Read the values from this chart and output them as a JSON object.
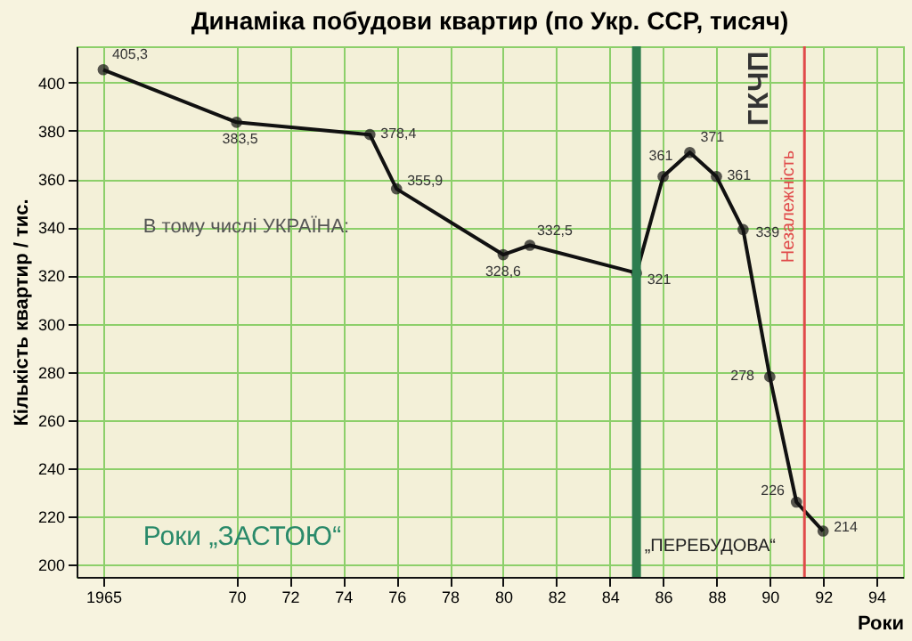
{
  "chart_data": {
    "type": "line",
    "title": "Динаміка побудови квартир (по Укр. ССР, тисяч)",
    "ylabel": "Кількість квартир / тис.",
    "xlabel": "Роки",
    "x": [
      1965,
      1970,
      1975,
      1976,
      1980,
      1981,
      1985,
      1986,
      1987,
      1988,
      1989,
      1990,
      1991,
      1992
    ],
    "series": [
      {
        "color": "#111111",
        "values": [
          405.3,
          383.5,
          378.4,
          355.9,
          328.6,
          332.5,
          321,
          361,
          371,
          361,
          339,
          278,
          226,
          214
        ],
        "value_labels": [
          "405,3",
          "383,5",
          "378,4",
          "355,9",
          "328,6",
          "332,5",
          "321",
          "361",
          "371",
          "361",
          "339",
          "278",
          "226",
          "214"
        ]
      }
    ],
    "xlim": [
      1964,
      1995
    ],
    "ylim": [
      195,
      415
    ],
    "xticks": [
      1965,
      {
        "value": 1970,
        "label": "70"
      },
      {
        "value": 1972,
        "label": "72"
      },
      {
        "value": 1974,
        "label": "74"
      },
      {
        "value": 1976,
        "label": "76"
      },
      {
        "value": 1978,
        "label": "78"
      },
      {
        "value": 1980,
        "label": "80"
      },
      {
        "value": 1982,
        "label": "82"
      },
      {
        "value": 1984,
        "label": "84"
      },
      {
        "value": 1986,
        "label": "86"
      },
      {
        "value": 1988,
        "label": "88"
      },
      {
        "value": 1990,
        "label": "90"
      },
      {
        "value": 1992,
        "label": "92"
      },
      {
        "value": 1994,
        "label": "94"
      }
    ],
    "yticks": [
      200,
      220,
      240,
      260,
      280,
      300,
      320,
      340,
      360,
      380,
      400
    ],
    "ref_lines": [
      {
        "axis": "x",
        "value": 1985,
        "color": "#2e7d4f"
      },
      {
        "axis": "x",
        "value": 1991.3,
        "label": "Незалежність",
        "color": "#e04a4a"
      }
    ],
    "annotations": [
      "В тому числі УКРАЇНА:",
      "Роки „ЗАСТОЮ“",
      "„ПЕРЕБУДОВА“",
      "ГКЧП"
    ],
    "grid": true,
    "marker": "circle",
    "line_style": "solid"
  }
}
